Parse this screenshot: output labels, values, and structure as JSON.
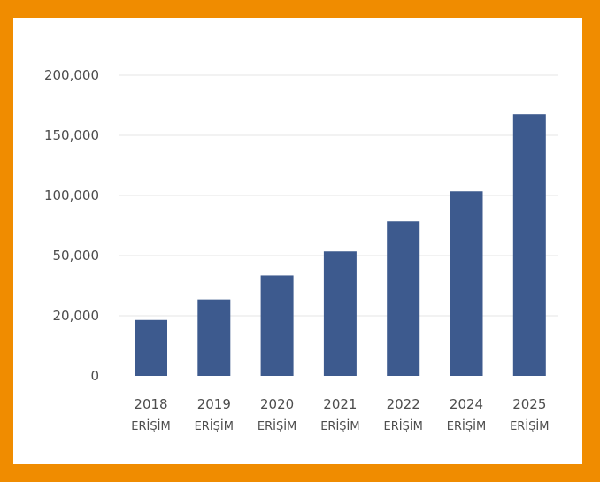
{
  "colors": {
    "frame": "#f08c00",
    "background": "#ffffff",
    "bar": "#3d5a8e",
    "grid": "#e6e6e6"
  },
  "chart_data": {
    "type": "bar",
    "title": "",
    "xlabel": "",
    "ylabel": "",
    "categories": [
      {
        "year": "2018",
        "sub": "ERİŞİM"
      },
      {
        "year": "2019",
        "sub": "ERİŞİM"
      },
      {
        "year": "2020",
        "sub": "ERİŞİM"
      },
      {
        "year": "2021",
        "sub": "ERİŞİM"
      },
      {
        "year": "2022",
        "sub": "ERİŞİM"
      },
      {
        "year": "2024",
        "sub": "ERİŞİM"
      },
      {
        "year": "2025",
        "sub": "ERİŞİM"
      }
    ],
    "ticks": [
      "0",
      "20,000",
      "50,000",
      "100,000",
      "150,000",
      "200,000"
    ],
    "tick_index_values": [
      0,
      1,
      2,
      3,
      4,
      5
    ],
    "values_index_scale": [
      0.93,
      1.27,
      1.67,
      2.07,
      2.57,
      3.07,
      4.35
    ],
    "grid": true,
    "legend": "none"
  }
}
